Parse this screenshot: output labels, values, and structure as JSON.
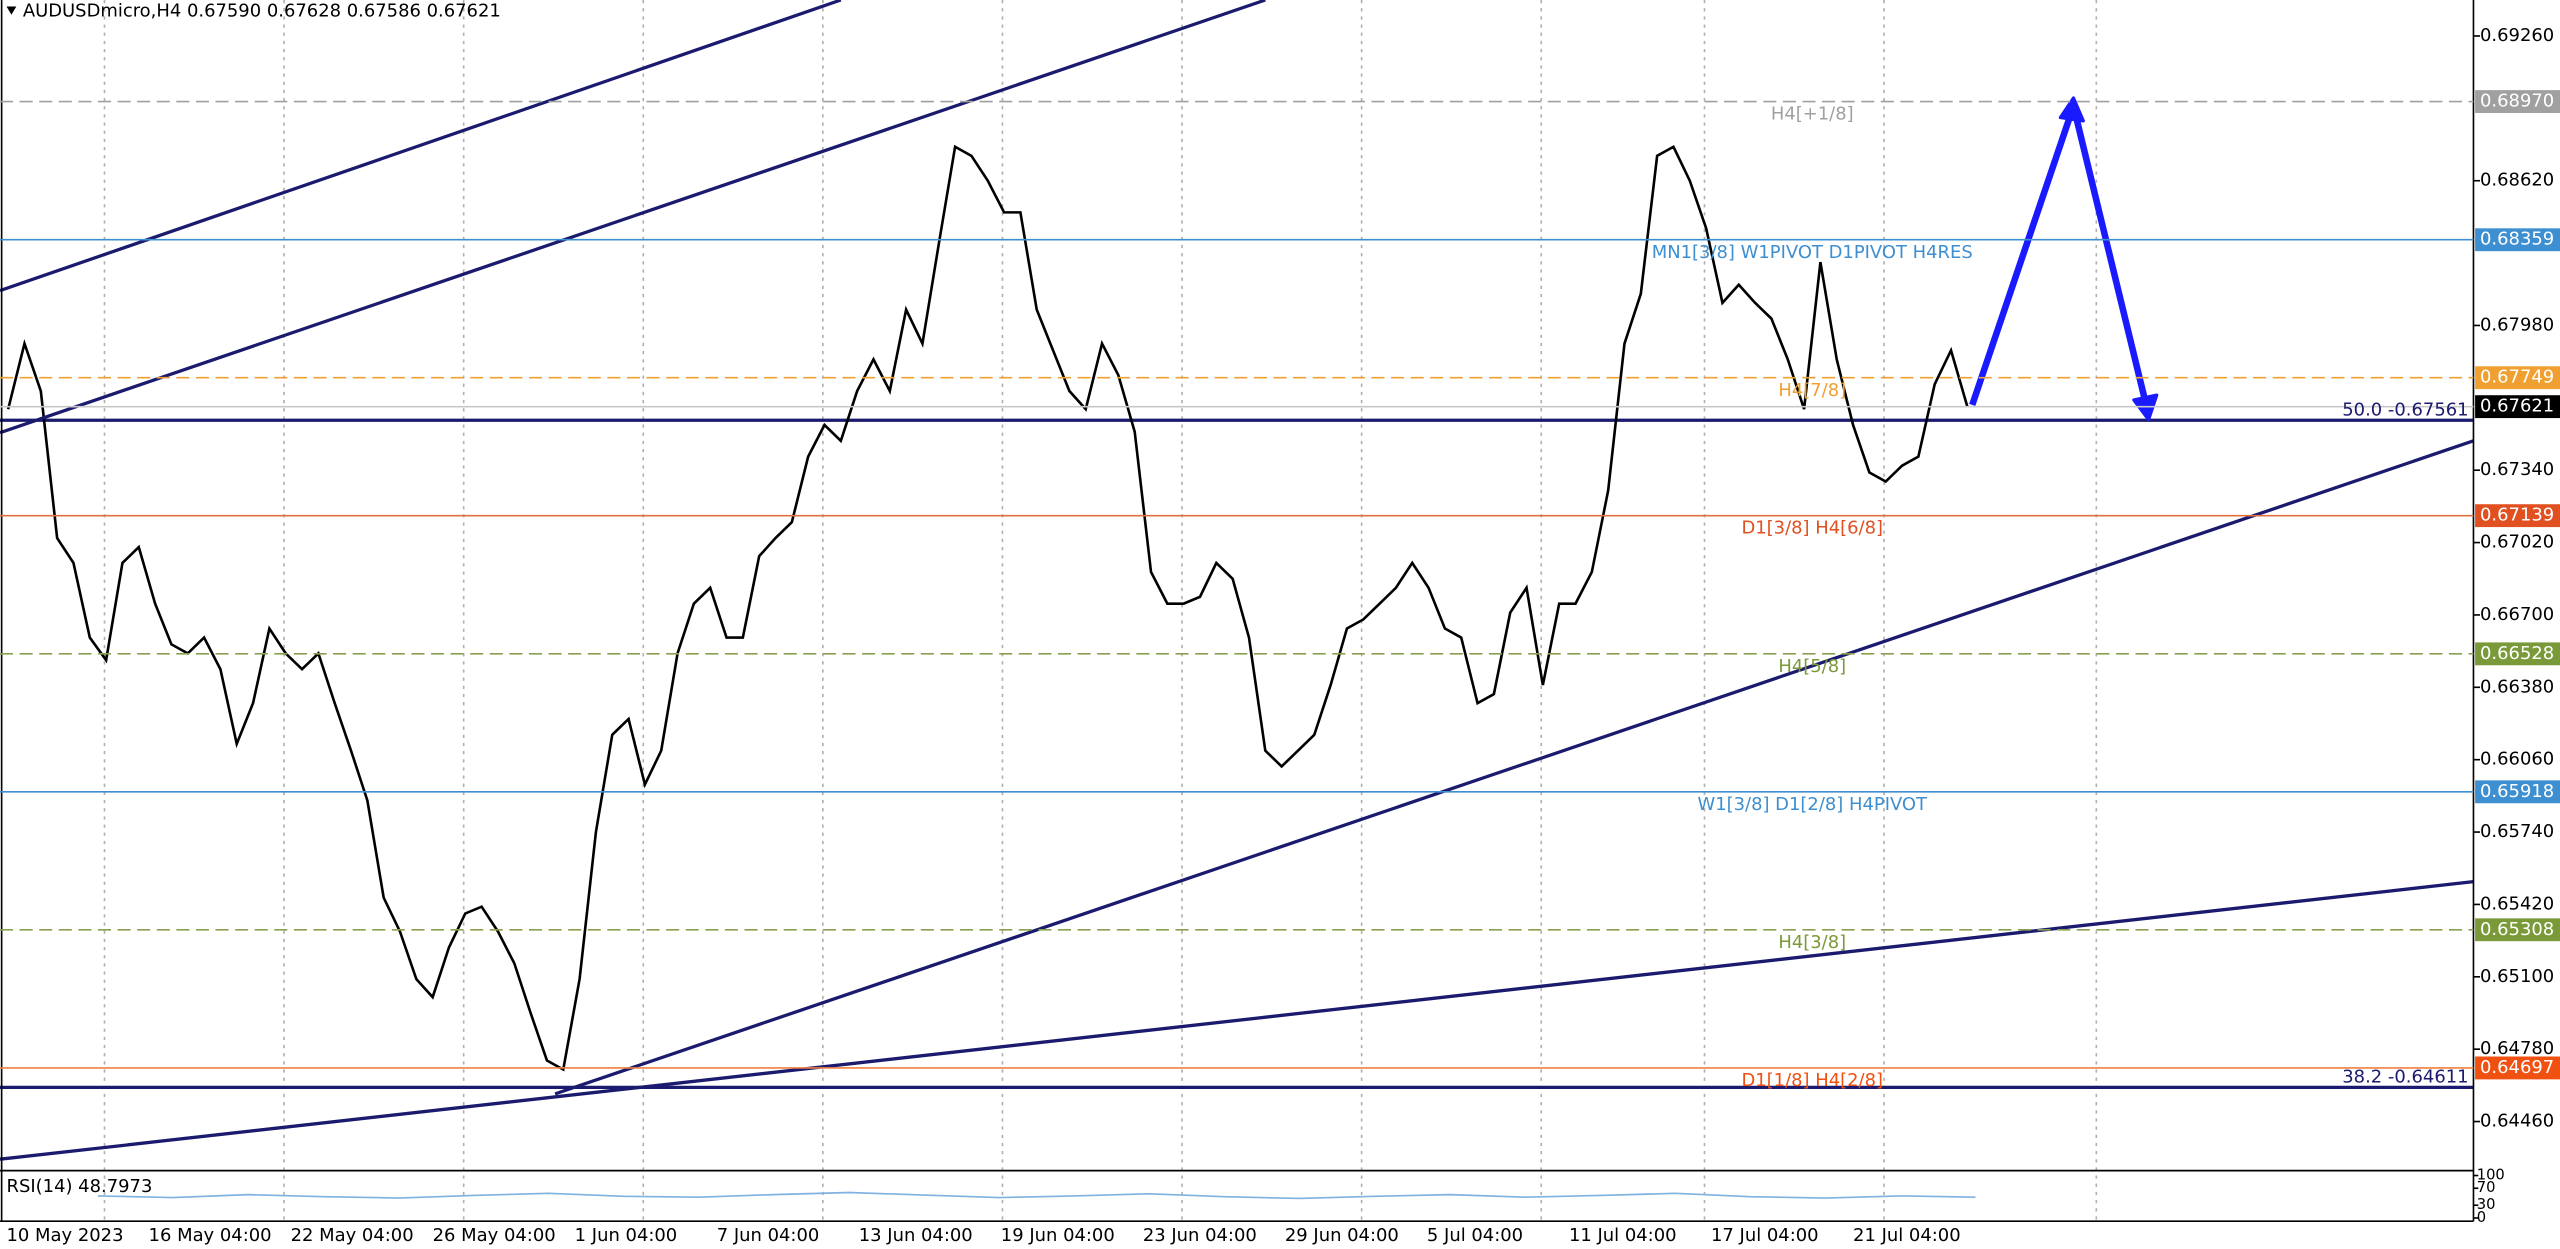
{
  "chart_data": {
    "type": "line",
    "header": "AUDUSDmicro,H4  0.67590 0.67628 0.67586 0.67621",
    "color": "#000000",
    "values": [
      0.6761,
      0.679,
      0.6769,
      0.6704,
      0.6693,
      0.666,
      0.665,
      0.6693,
      0.67,
      0.6675,
      0.6657,
      0.6653,
      0.666,
      0.6646,
      0.6613,
      0.6631,
      0.6664,
      0.6653,
      0.6646,
      0.6653,
      0.6631,
      0.661,
      0.6588,
      0.6545,
      0.653,
      0.6509,
      0.6501,
      0.6523,
      0.6538,
      0.6541,
      0.653,
      0.6516,
      0.6494,
      0.6473,
      0.6469,
      0.6509,
      0.6574,
      0.6617,
      0.6624,
      0.6595,
      0.661,
      0.6653,
      0.6675,
      0.6682,
      0.666,
      0.666,
      0.6696,
      0.6704,
      0.6711,
      0.674,
      0.6754,
      0.6747,
      0.6769,
      0.6783,
      0.6769,
      0.6805,
      0.679,
      0.6834,
      0.6877,
      0.6873,
      0.6862,
      0.6848,
      0.6848,
      0.6805,
      0.6787,
      0.6769,
      0.6761,
      0.679,
      0.6776,
      0.6751,
      0.6689,
      0.6675,
      0.6675,
      0.6678,
      0.6693,
      0.6686,
      0.666,
      0.661,
      0.6603,
      0.661,
      0.6617,
      0.6639,
      0.6664,
      0.6668,
      0.6675,
      0.6682,
      0.6693,
      0.6682,
      0.6664,
      0.666,
      0.6631,
      0.6635,
      0.6671,
      0.6682,
      0.6639,
      0.6675,
      0.6675,
      0.6689,
      0.6725,
      0.679,
      0.6812,
      0.6873,
      0.6877,
      0.6862,
      0.6841,
      0.6808,
      0.6816,
      0.6808,
      0.6801,
      0.6783,
      0.6761,
      0.6826,
      0.6783,
      0.6754,
      0.6733,
      0.6729,
      0.6736,
      0.674,
      0.6772,
      0.6787,
      0.67621
    ],
    "time_labels": [
      "10 May 2023",
      "16 May 04:00",
      "22 May 04:00",
      "26 May 04:00",
      "1 Jun 04:00",
      "7 Jun 04:00",
      "13 Jun 04:00",
      "19 Jun 04:00",
      "23 Jun 04:00",
      "29 Jun 04:00",
      "5 Jul 04:00",
      "11 Jul 04:00",
      "17 Jul 04:00",
      "21 Jul 04:00"
    ],
    "ylim": [
      0.64243,
      0.69419
    ],
    "yticks": [
      {
        "value": 0.6926,
        "label": "0.69260"
      },
      {
        "value": 0.6862,
        "label": "0.68620"
      },
      {
        "value": 0.6798,
        "label": "0.67980"
      },
      {
        "value": 0.6734,
        "label": "0.67340"
      },
      {
        "value": 0.6702,
        "label": "0.67020"
      },
      {
        "value": 0.667,
        "label": "0.66700"
      },
      {
        "value": 0.6638,
        "label": "0.66380"
      },
      {
        "value": 0.6606,
        "label": "0.66060"
      },
      {
        "value": 0.6574,
        "label": "0.65740"
      },
      {
        "value": 0.6542,
        "label": "0.65420"
      },
      {
        "value": 0.651,
        "label": "0.65100"
      },
      {
        "value": 0.6478,
        "label": "0.64780"
      },
      {
        "value": 0.6446,
        "label": "0.64460"
      }
    ],
    "levels": [
      {
        "value": 0.6897,
        "price_label": "0.68970",
        "text": "H4[+1/8]",
        "color": "#a0a0a0",
        "box": "#a0a0a0",
        "dashed": true
      },
      {
        "value": 0.68359,
        "price_label": "0.68359",
        "text": "MN1[3/8] W1PIVOT D1PIVOT H4RES",
        "color": "#3d8fd1",
        "box": "#3d8fd1",
        "dashed": false
      },
      {
        "value": 0.67749,
        "price_label": "0.67749",
        "text": "H4[7/8]",
        "color": "#f0a030",
        "box": "#f0a030",
        "dashed": true
      },
      {
        "value": 0.67621,
        "price_label": "0.67621",
        "color": "#c8c8c8",
        "box": "#000000",
        "dashed": false
      },
      {
        "value": 0.67139,
        "price_label": "0.67139",
        "text": "D1[3/8] H4[6/8]",
        "color": "#e07040",
        "box": "#e05020",
        "dashed": false
      },
      {
        "value": 0.66528,
        "price_label": "0.66528",
        "text": "H4[5/8]",
        "color": "#8aa050",
        "box": "#7a9a3a",
        "dashed": true
      },
      {
        "value": 0.65918,
        "price_label": "0.65918",
        "text": "W1[3/8] D1[2/8] H4PIVOT",
        "color": "#3d8fd1",
        "box": "#3d8fd1",
        "dashed": false
      },
      {
        "value": 0.65308,
        "price_label": "0.65308",
        "text": "H4[3/8]",
        "color": "#8aa050",
        "box": "#7a9a3a",
        "dashed": true
      },
      {
        "value": 0.64697,
        "price_label": "0.64697",
        "text": "D1[1/8] H4[2/8]",
        "color": "#f08040",
        "box": "#f05010",
        "dashed": false
      }
    ],
    "fibo": [
      {
        "value": 0.67561,
        "label": "50.0 -0.67561",
        "color": "#1a1a6e"
      },
      {
        "value": 0.64611,
        "label": "38.2 -0.64611",
        "color": "#1a1a6e"
      }
    ],
    "rsi_label": "RSI(14) 48.7973",
    "rsi_color": "#7fb2e0",
    "rsi_values": [
      52,
      48,
      55,
      50,
      47,
      53,
      58,
      51,
      49,
      55,
      60,
      54,
      48,
      52,
      57,
      50,
      46,
      51,
      55,
      49,
      53,
      58,
      50,
      47,
      52,
      49
    ],
    "rsi_ticks": [
      100,
      70,
      30,
      0
    ]
  }
}
